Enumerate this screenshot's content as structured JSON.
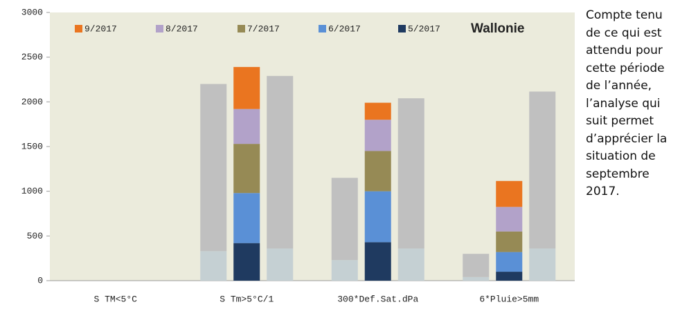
{
  "chart_data": {
    "type": "bar",
    "categories": [
      "S TM<5°C",
      "S Tm>5°C/1",
      "300*Def.Sat.dPa",
      "6*Pluie>5mm"
    ],
    "annotation": "Wallonie",
    "ylim": [
      0,
      3000
    ],
    "yticks": [
      0,
      500,
      1000,
      1500,
      2000,
      2500,
      3000
    ],
    "background": "#ebebdc",
    "series": [
      {
        "name": "5/2017",
        "color": "#1f3a60",
        "stack": "middle",
        "values": [
          null,
          420,
          430,
          100
        ]
      },
      {
        "name": "6/2017",
        "color": "#5a90d6",
        "stack": "middle",
        "values": [
          null,
          560,
          570,
          220
        ]
      },
      {
        "name": "7/2017",
        "color": "#968a55",
        "stack": "middle",
        "values": [
          null,
          550,
          450,
          230
        ]
      },
      {
        "name": "8/2017",
        "color": "#b2a2c9",
        "stack": "middle",
        "values": [
          null,
          390,
          350,
          275
        ]
      },
      {
        "name": "9/2017",
        "color": "#ea7520",
        "stack": "middle",
        "values": [
          null,
          470,
          190,
          290
        ]
      },
      {
        "color": "#c5d0d3",
        "stack": "left",
        "values": [
          null,
          330,
          230,
          40
        ]
      },
      {
        "color": "#c0c0c0",
        "stack": "left",
        "values": [
          null,
          1870,
          920,
          260
        ]
      },
      {
        "color": "#c5d0d3",
        "stack": "right",
        "values": [
          null,
          360,
          360,
          360
        ]
      },
      {
        "color": "#c0c0c0",
        "stack": "right",
        "values": [
          null,
          1930,
          1680,
          1755
        ]
      }
    ]
  },
  "side_text": [
    "Compte tenu",
    "de ce qui est",
    "attendu pour",
    "cette période",
    "de l’année,",
    "l’analyse qui",
    "suit permet",
    "d’apprécier la",
    "situation de",
    "septembre",
    "2017."
  ]
}
